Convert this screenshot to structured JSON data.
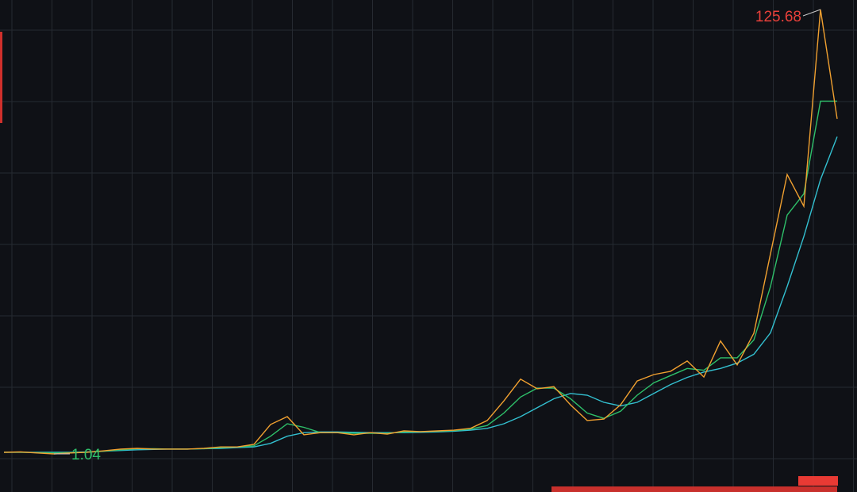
{
  "chart_data": {
    "type": "line",
    "high": 125.68,
    "low": 1.04,
    "high_color": "#e8403a",
    "low_color": "#2ec06a",
    "ylim": [
      -7.42,
      128.35
    ],
    "series": [
      {
        "color": "#33c0d0",
        "values": [
          1.5,
          1.5,
          1.5,
          1.5,
          1.5,
          1.6,
          1.8,
          2.0,
          2.2,
          2.3,
          2.4,
          2.4,
          2.5,
          2.6,
          2.8,
          3.0,
          4.0,
          6.0,
          7.0,
          7.2,
          7.2,
          7.1,
          7.0,
          7.0,
          7.0,
          7.1,
          7.2,
          7.4,
          7.7,
          8.2,
          9.5,
          11.5,
          14.0,
          16.5,
          18.0,
          17.5,
          15.5,
          14.5,
          15.5,
          18.0,
          20.5,
          22.5,
          24.0,
          25.0,
          26.5,
          29.0,
          35.0,
          48.0,
          62.0,
          78.0,
          90.0
        ]
      },
      {
        "color": "#2ec06a",
        "values": [
          1.5,
          1.5,
          1.4,
          1.3,
          1.4,
          1.5,
          1.8,
          2.2,
          2.5,
          2.5,
          2.4,
          2.4,
          2.5,
          2.8,
          3.0,
          3.3,
          6.0,
          9.5,
          8.5,
          7.0,
          7.0,
          6.8,
          6.8,
          6.8,
          7.2,
          7.3,
          7.4,
          7.6,
          8.0,
          9.0,
          12.5,
          17.0,
          19.5,
          19.5,
          16.5,
          12.5,
          11.0,
          13.0,
          17.5,
          21.0,
          23.0,
          25.0,
          24.5,
          28.0,
          28.0,
          33.0,
          48.0,
          68.0,
          74.0,
          100.0,
          100.0
        ]
      },
      {
        "color": "#f0a030",
        "values": [
          1.49,
          1.6,
          1.3,
          1.04,
          1.3,
          1.5,
          1.9,
          2.4,
          2.6,
          2.4,
          2.4,
          2.4,
          2.6,
          3.0,
          3.0,
          3.7,
          9.3,
          11.5,
          6.4,
          7.0,
          7.0,
          6.4,
          7.0,
          6.6,
          7.5,
          7.3,
          7.5,
          7.7,
          8.2,
          10.4,
          15.9,
          22.0,
          19.3,
          19.9,
          14.8,
          10.4,
          10.8,
          14.8,
          21.5,
          23.3,
          24.2,
          27.1,
          22.6,
          32.7,
          26.0,
          34.9,
          57.2,
          79.4,
          70.5,
          125.68,
          95.0
        ]
      }
    ]
  }
}
